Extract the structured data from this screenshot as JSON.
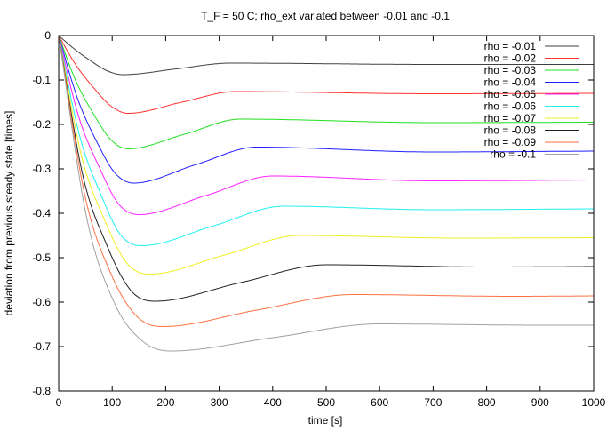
{
  "chart_data": {
    "type": "line",
    "title": "T_F = 50 C; rho_ext variated between -0.01 and -0.1",
    "xlabel": "time [s]",
    "ylabel": "deviation from previous steady state [times]",
    "xlim": [
      0,
      1000
    ],
    "ylim": [
      -0.8,
      0
    ],
    "xticks": [
      "0",
      "100",
      "200",
      "300",
      "400",
      "500",
      "600",
      "700",
      "800",
      "900",
      "1000"
    ],
    "yticks": [
      "0",
      "-0.1",
      "-0.2",
      "-0.3",
      "-0.4",
      "-0.5",
      "-0.6",
      "-0.7",
      "-0.8"
    ],
    "grid": false,
    "legend_position": "top-right",
    "series": [
      {
        "name": "rho = -0.01",
        "color": "#404040",
        "points": [
          [
            0,
            0
          ],
          [
            30,
            -0.031
          ],
          [
            60,
            -0.057
          ],
          [
            90,
            -0.079
          ],
          [
            120,
            -0.088
          ],
          [
            220,
            -0.075
          ],
          [
            320,
            -0.062
          ],
          [
            700,
            -0.065
          ],
          [
            1000,
            -0.065
          ]
        ]
      },
      {
        "name": "rho = -0.02",
        "color": "#ff3030",
        "points": [
          [
            0,
            0
          ],
          [
            32,
            -0.066
          ],
          [
            65,
            -0.117
          ],
          [
            98,
            -0.159
          ],
          [
            130,
            -0.175
          ],
          [
            230,
            -0.15
          ],
          [
            330,
            -0.126
          ],
          [
            700,
            -0.131
          ],
          [
            1000,
            -0.13
          ]
        ]
      },
      {
        "name": "rho = -0.03",
        "color": "#20e020",
        "points": [
          [
            0,
            0
          ],
          [
            32,
            -0.102
          ],
          [
            65,
            -0.176
          ],
          [
            98,
            -0.235
          ],
          [
            130,
            -0.255
          ],
          [
            235,
            -0.222
          ],
          [
            340,
            -0.188
          ],
          [
            700,
            -0.196
          ],
          [
            1000,
            -0.195
          ]
        ]
      },
      {
        "name": "rho = -0.04",
        "color": "#2020ff",
        "points": [
          [
            0,
            0
          ],
          [
            35,
            -0.141
          ],
          [
            70,
            -0.236
          ],
          [
            105,
            -0.309
          ],
          [
            140,
            -0.332
          ],
          [
            255,
            -0.291
          ],
          [
            370,
            -0.251
          ],
          [
            700,
            -0.262
          ],
          [
            1000,
            -0.26
          ]
        ]
      },
      {
        "name": "rho = -0.05",
        "color": "#ff20ff",
        "points": [
          [
            0,
            0
          ],
          [
            37,
            -0.181
          ],
          [
            75,
            -0.294
          ],
          [
            112,
            -0.379
          ],
          [
            150,
            -0.403
          ],
          [
            275,
            -0.36
          ],
          [
            400,
            -0.316
          ],
          [
            700,
            -0.327
          ],
          [
            1000,
            -0.325
          ]
        ]
      },
      {
        "name": "rho = -0.06",
        "color": "#20f0f0",
        "points": [
          [
            0,
            0
          ],
          [
            39,
            -0.225
          ],
          [
            78,
            -0.355
          ],
          [
            116,
            -0.449
          ],
          [
            155,
            -0.473
          ],
          [
            290,
            -0.428
          ],
          [
            420,
            -0.384
          ],
          [
            700,
            -0.392
          ],
          [
            1000,
            -0.39
          ]
        ]
      },
      {
        "name": "rho = -0.07",
        "color": "#f0f020",
        "points": [
          [
            0,
            0
          ],
          [
            42,
            -0.268
          ],
          [
            85,
            -0.413
          ],
          [
            128,
            -0.513
          ],
          [
            170,
            -0.537
          ],
          [
            310,
            -0.494
          ],
          [
            450,
            -0.45
          ],
          [
            750,
            -0.456
          ],
          [
            1000,
            -0.455
          ]
        ]
      },
      {
        "name": "rho = -0.08",
        "color": "#202020",
        "points": [
          [
            0,
            0
          ],
          [
            45,
            -0.314
          ],
          [
            90,
            -0.472
          ],
          [
            135,
            -0.574
          ],
          [
            180,
            -0.598
          ],
          [
            340,
            -0.556
          ],
          [
            500,
            -0.516
          ],
          [
            800,
            -0.521
          ],
          [
            1000,
            -0.52
          ]
        ]
      },
      {
        "name": "rho = -0.09",
        "color": "#ff7040",
        "points": [
          [
            0,
            0
          ],
          [
            49,
            -0.36
          ],
          [
            98,
            -0.537
          ],
          [
            146,
            -0.632
          ],
          [
            195,
            -0.655
          ],
          [
            370,
            -0.618
          ],
          [
            550,
            -0.583
          ],
          [
            850,
            -0.587
          ],
          [
            1000,
            -0.586
          ]
        ]
      },
      {
        "name": "rho = -0.1",
        "color": "#a0a0a0",
        "points": [
          [
            0,
            0
          ],
          [
            52,
            -0.408
          ],
          [
            105,
            -0.604
          ],
          [
            158,
            -0.689
          ],
          [
            210,
            -0.71
          ],
          [
            400,
            -0.68
          ],
          [
            600,
            -0.649
          ],
          [
            900,
            -0.652
          ],
          [
            1000,
            -0.652
          ]
        ]
      }
    ]
  }
}
